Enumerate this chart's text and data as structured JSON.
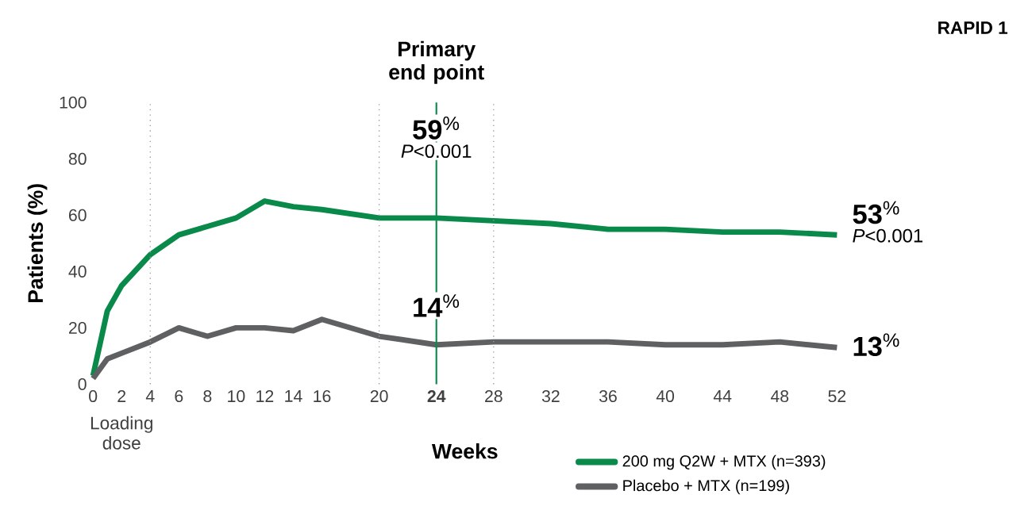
{
  "chart_data": {
    "type": "line",
    "title": "RAPID 1",
    "xlabel": "Weeks",
    "ylabel": "Patients (%)",
    "x": [
      0,
      1,
      2,
      4,
      6,
      8,
      10,
      12,
      14,
      16,
      20,
      24,
      28,
      32,
      36,
      40,
      44,
      48,
      52
    ],
    "series": [
      {
        "name": "200 mg Q2W + MTX (n=393)",
        "color": "#0a8a4a",
        "values": [
          3,
          26,
          35,
          46,
          53,
          56,
          59,
          65,
          63,
          62,
          59,
          59,
          58,
          57,
          55,
          55,
          54,
          54,
          53
        ]
      },
      {
        "name": "Placebo + MTX (n=199)",
        "color": "#5f6062",
        "values": [
          2,
          9,
          11,
          15,
          20,
          17,
          20,
          20,
          19,
          23,
          17,
          14,
          15,
          15,
          15,
          14,
          14,
          15,
          13
        ]
      }
    ],
    "xlim": [
      0,
      52
    ],
    "ylim": [
      0,
      100
    ],
    "xticks": [
      0,
      2,
      4,
      6,
      8,
      10,
      12,
      14,
      16,
      20,
      {
        "value": 24,
        "label": "**24**"
      },
      28,
      32,
      36,
      40,
      44,
      48,
      52
    ],
    "yticks": [
      0,
      20,
      40,
      60,
      80,
      100
    ],
    "ref_lines": [
      {
        "axis": "x",
        "value": 4,
        "color": "#9a9a9a",
        "line_style": "dotted"
      },
      {
        "axis": "x",
        "value": 20,
        "color": "#9a9a9a",
        "line_style": "dotted"
      },
      {
        "axis": "x",
        "value": 24,
        "color": "#0a8a4a",
        "line_style": "solid",
        "label": "**Primary end point**"
      },
      {
        "axis": "x",
        "value": 28,
        "color": "#9a9a9a",
        "line_style": "dotted"
      }
    ],
    "annotations": [
      "**59**$^{%}$",
      "*P*<0.001",
      "**14**$^{%}$",
      "**53**$^{%}$",
      "*P*<0.001",
      "**13**$^{%}$",
      "Loading dose"
    ],
    "legend": "bottom right",
    "grid": false,
    "marker": "none",
    "line_style": "solid"
  }
}
